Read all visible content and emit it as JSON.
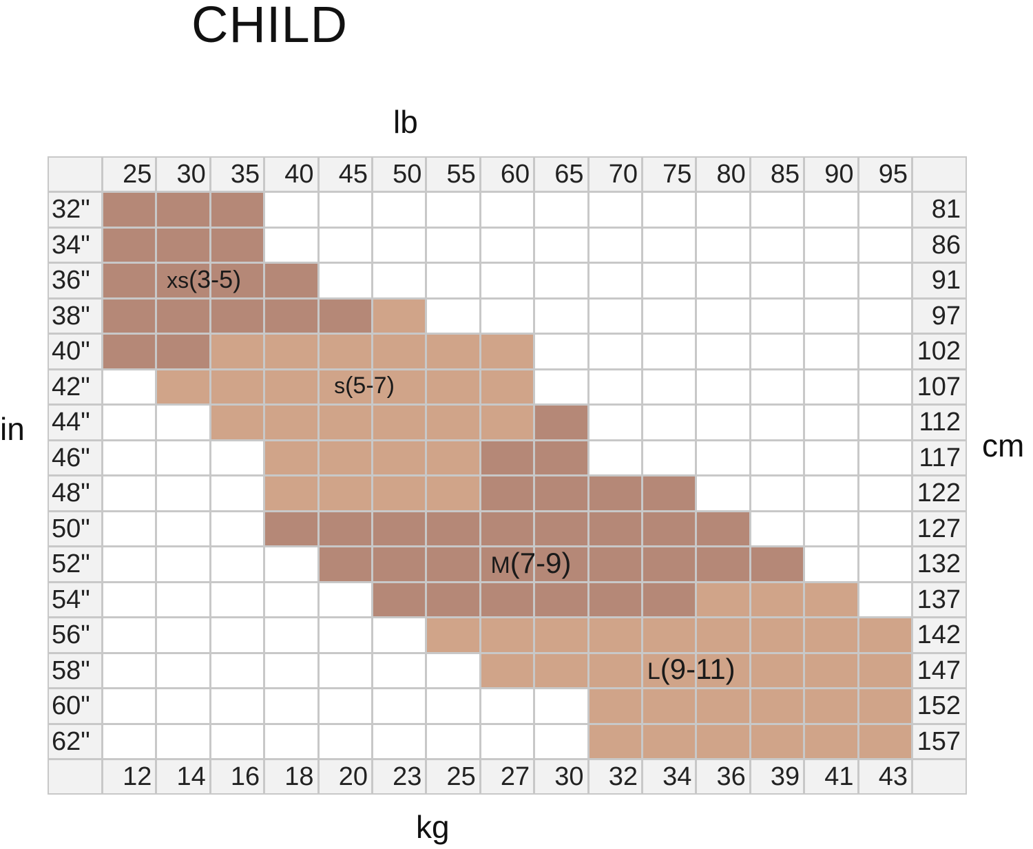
{
  "title": "CHILD",
  "chart_data": {
    "type": "heatmap",
    "title": "CHILD",
    "top_axis": {
      "label": "lb",
      "ticks": [
        "25",
        "30",
        "35",
        "40",
        "45",
        "50",
        "55",
        "60",
        "65",
        "70",
        "75",
        "80",
        "85",
        "90",
        "95"
      ]
    },
    "bottom_axis": {
      "label": "kg",
      "ticks": [
        "12",
        "14",
        "16",
        "18",
        "20",
        "23",
        "25",
        "27",
        "30",
        "32",
        "34",
        "36",
        "39",
        "41",
        "43"
      ]
    },
    "left_axis": {
      "label": "in",
      "ticks": [
        "32\"",
        "34\"",
        "36\"",
        "38\"",
        "40\"",
        "42\"",
        "44\"",
        "46\"",
        "48\"",
        "50\"",
        "52\"",
        "54\"",
        "56\"",
        "58\"",
        "60\"",
        "62\""
      ]
    },
    "right_axis": {
      "label": "cm",
      "ticks": [
        "81",
        "86",
        "91",
        "97",
        "102",
        "107",
        "112",
        "117",
        "122",
        "127",
        "132",
        "137",
        "142",
        "147",
        "152",
        "157"
      ]
    },
    "sizes": [
      {
        "prefix": "xs",
        "range": "(3-5)",
        "color": "#b58877"
      },
      {
        "prefix": "s",
        "range": "(5-7)",
        "color": "#d0a489"
      },
      {
        "prefix": "M",
        "range": "(7-9)",
        "color": "#b58877"
      },
      {
        "prefix": "L",
        "range": "(9-11)",
        "color": "#d0a489"
      }
    ],
    "size_by_height_and_weight": [
      [
        "xs",
        "xs",
        "xs",
        "",
        "",
        "",
        "",
        "",
        "",
        "",
        "",
        "",
        "",
        "",
        ""
      ],
      [
        "xs",
        "xs",
        "xs",
        "",
        "",
        "",
        "",
        "",
        "",
        "",
        "",
        "",
        "",
        "",
        ""
      ],
      [
        "xs",
        "xs",
        "xs",
        "xs",
        "",
        "",
        "",
        "",
        "",
        "",
        "",
        "",
        "",
        "",
        ""
      ],
      [
        "xs",
        "xs",
        "xs",
        "xs",
        "xs",
        "s",
        "",
        "",
        "",
        "",
        "",
        "",
        "",
        "",
        ""
      ],
      [
        "xs",
        "xs",
        "s",
        "s",
        "s",
        "s",
        "s",
        "s",
        "",
        "",
        "",
        "",
        "",
        "",
        ""
      ],
      [
        "",
        "s",
        "s",
        "s",
        "s",
        "s",
        "s",
        "s",
        "",
        "",
        "",
        "",
        "",
        "",
        ""
      ],
      [
        "",
        "",
        "s",
        "s",
        "s",
        "s",
        "s",
        "s",
        "M",
        "",
        "",
        "",
        "",
        "",
        ""
      ],
      [
        "",
        "",
        "",
        "s",
        "s",
        "s",
        "s",
        "M",
        "M",
        "",
        "",
        "",
        "",
        "",
        ""
      ],
      [
        "",
        "",
        "",
        "s",
        "s",
        "s",
        "s",
        "M",
        "M",
        "M",
        "M",
        "",
        "",
        "",
        ""
      ],
      [
        "",
        "",
        "",
        "M",
        "M",
        "M",
        "M",
        "M",
        "M",
        "M",
        "M",
        "M",
        "",
        "",
        ""
      ],
      [
        "",
        "",
        "",
        "",
        "M",
        "M",
        "M",
        "M",
        "M",
        "M",
        "M",
        "M",
        "M",
        "",
        ""
      ],
      [
        "",
        "",
        "",
        "",
        "",
        "M",
        "M",
        "M",
        "M",
        "M",
        "M",
        "L",
        "L",
        "L",
        ""
      ],
      [
        "",
        "",
        "",
        "",
        "",
        "",
        "L",
        "L",
        "L",
        "L",
        "L",
        "L",
        "L",
        "L",
        "L"
      ],
      [
        "",
        "",
        "",
        "",
        "",
        "",
        "",
        "L",
        "L",
        "L",
        "L",
        "L",
        "L",
        "L",
        "L"
      ],
      [
        "",
        "",
        "",
        "",
        "",
        "",
        "",
        "",
        "",
        "L",
        "L",
        "L",
        "L",
        "L",
        "L"
      ],
      [
        "",
        "",
        "",
        "",
        "",
        "",
        "",
        "",
        "",
        "L",
        "L",
        "L",
        "L",
        "L",
        "L"
      ]
    ],
    "colors": {
      "header": "#f2f2f2",
      "gridline": "#c8c8c8",
      "empty": "#ffffff"
    }
  }
}
